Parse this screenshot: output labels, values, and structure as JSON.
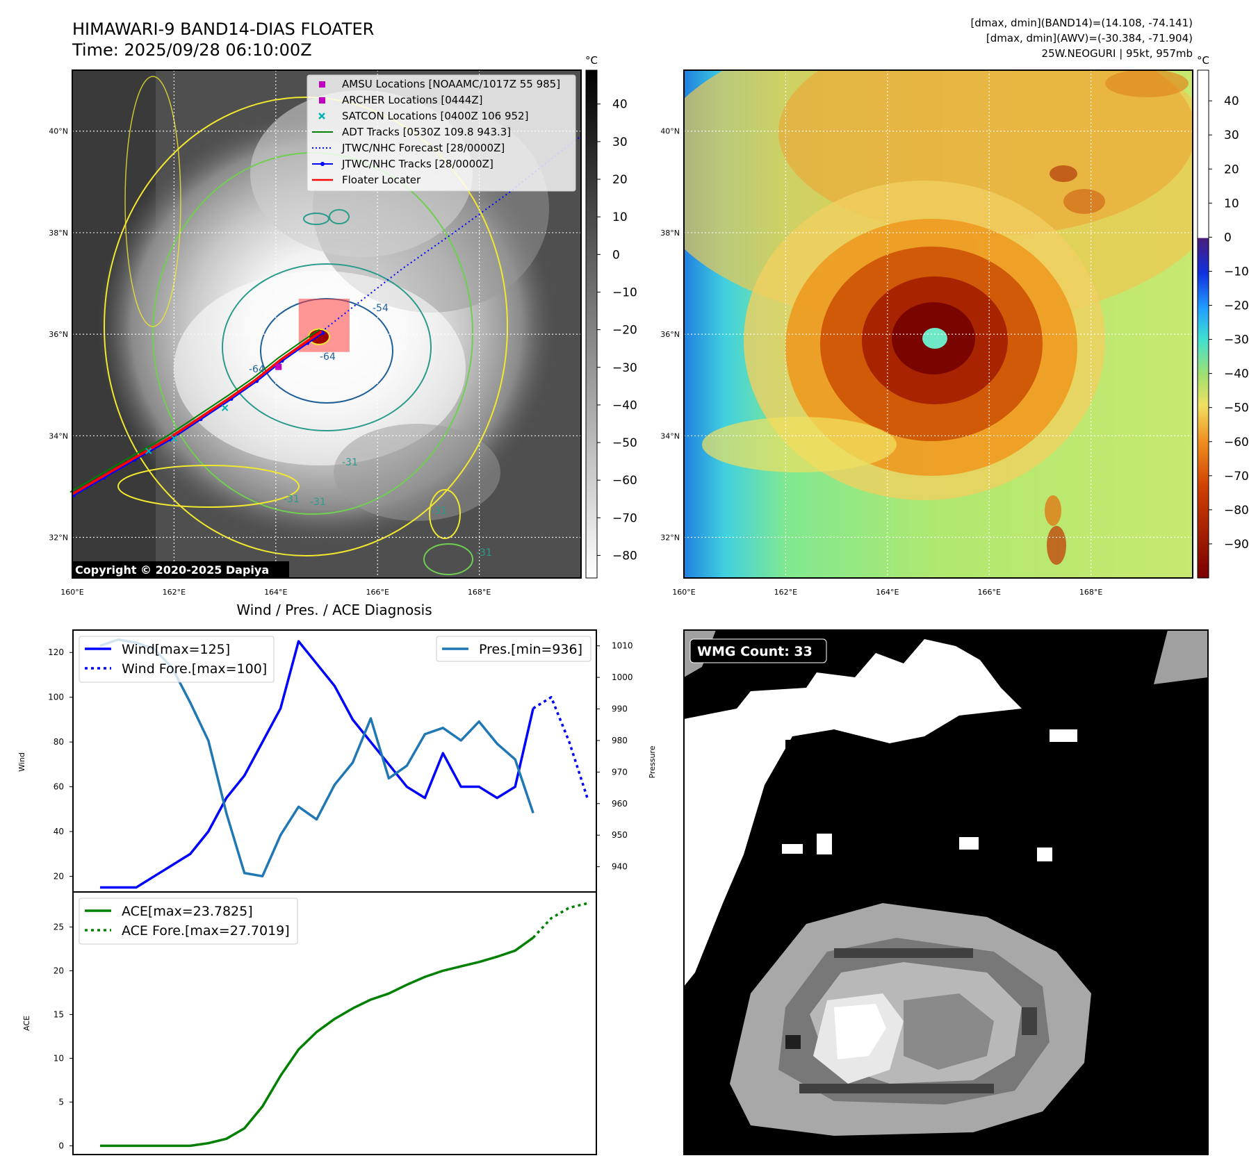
{
  "header": {
    "title_line1": "HIMAWARI-9 BAND14-DIAS FLOATER",
    "title_line2": "Time: 2025/09/28 06:10:00Z",
    "info_line1": "[dmax, dmin](BAND14)=(14.108, -74.141)",
    "info_line2": "[dmax, dmin](AWV)=(-30.384, -71.904)",
    "info_line3": "25W.NEOGURI | 95kt, 957mb"
  },
  "map": {
    "lat_labels": [
      "40°N",
      "38°N",
      "36°N",
      "34°N",
      "32°N"
    ],
    "lat_values": [
      40,
      38,
      36,
      34,
      32
    ],
    "lon_labels": [
      "160°E",
      "162°E",
      "164°E",
      "166°E",
      "168°E"
    ],
    "lon_values": [
      160,
      162,
      164,
      166,
      168
    ],
    "lon_range": [
      160,
      170
    ],
    "lat_range": [
      31.2,
      41.2
    ],
    "copyright": "Copyright © 2020-2025 Dapiya",
    "legend": [
      {
        "label": "AMSU Locations [NOAAMC/1017Z 55 985]",
        "marker": "square",
        "color": "#c000c0"
      },
      {
        "label": "ARCHER Locations [0444Z]",
        "marker": "square",
        "color": "#c000c0"
      },
      {
        "label": "SATCON Locations [0400Z 106 952]",
        "marker": "x",
        "color": "#00b4b4"
      },
      {
        "label": "ADT Tracks [0530Z 109.8 943.3]",
        "marker": "line",
        "color": "#007f00"
      },
      {
        "label": "JTWC/NHC Forecast [28/0000Z]",
        "marker": "dotted",
        "color": "#0000ff"
      },
      {
        "label": "JTWC/NHC Tracks [28/0000Z]",
        "marker": "dotline",
        "color": "#0000ff"
      },
      {
        "label": "Floater Locater",
        "marker": "line",
        "color": "#ff0000"
      }
    ],
    "contour_labels": [
      "-54",
      "-64",
      "-64",
      "-31",
      "-31",
      "-31",
      "-31",
      "-31"
    ],
    "track_lonlat": [
      [
        160.0,
        32.85
      ],
      [
        160.6,
        33.2
      ],
      [
        161.2,
        33.55
      ],
      [
        161.9,
        33.95
      ],
      [
        162.5,
        34.35
      ],
      [
        163.1,
        34.75
      ],
      [
        163.6,
        35.1
      ],
      [
        164.1,
        35.5
      ],
      [
        164.6,
        35.85
      ],
      [
        164.9,
        36.05
      ]
    ],
    "forecast_lonlat": [
      [
        164.9,
        36.05
      ],
      [
        165.6,
        36.6
      ],
      [
        166.5,
        37.3
      ],
      [
        167.5,
        38.0
      ],
      [
        168.6,
        38.8
      ],
      [
        169.6,
        39.6
      ],
      [
        170.0,
        39.9
      ]
    ],
    "floater_box": {
      "lon": [
        164.45,
        165.45
      ],
      "lat": [
        35.65,
        36.7
      ]
    },
    "center": {
      "lon": 164.85,
      "lat": 35.95
    }
  },
  "colorbar_left": {
    "unit": "°C",
    "ticks": [
      "40",
      "30",
      "20",
      "10",
      "0",
      "−10",
      "−20",
      "−30",
      "−40",
      "−50",
      "−60",
      "−70",
      "−80"
    ],
    "tick_values": [
      40,
      30,
      20,
      10,
      0,
      -10,
      -20,
      -30,
      -40,
      -50,
      -60,
      -70,
      -80
    ],
    "range": [
      49,
      -86
    ]
  },
  "colorbar_right": {
    "unit": "°C",
    "ticks": [
      "40",
      "30",
      "20",
      "10",
      "0",
      "−10",
      "−20",
      "−30",
      "−40",
      "−50",
      "−60",
      "−70",
      "−80",
      "−90"
    ],
    "tick_values": [
      40,
      30,
      20,
      10,
      0,
      -10,
      -20,
      -30,
      -40,
      -50,
      -60,
      -70,
      -80,
      -90
    ],
    "range": [
      49,
      -100
    ]
  },
  "chart_data": [
    {
      "type": "line",
      "title": "Wind / Pres. / ACE Diagnosis",
      "ylabel": "Wind",
      "ylabel_right": "Pressure",
      "ylim": [
        13,
        130
      ],
      "ylim_right": [
        932,
        1015
      ],
      "yticks": [
        20,
        40,
        60,
        80,
        100,
        120
      ],
      "yticks_right": [
        940,
        950,
        960,
        970,
        980,
        990,
        1000,
        1010
      ],
      "xlim": [
        -1.5,
        27.5
      ],
      "legend_left": [
        "Wind[max=125]",
        "Wind Fore.[max=100]"
      ],
      "legend_right": [
        "Pres.[min=936]"
      ],
      "series": [
        {
          "name": "Wind[max=125]",
          "axis": "left",
          "color": "#0000ff",
          "style": "solid",
          "x": [
            0,
            1,
            2,
            3,
            4,
            5,
            6,
            7,
            8,
            9,
            10,
            11,
            12,
            13,
            14,
            15,
            16,
            17,
            18,
            19,
            20,
            21,
            22,
            23,
            24
          ],
          "values": [
            15,
            15,
            15,
            20,
            25,
            30,
            40,
            55,
            65,
            80,
            95,
            125,
            115,
            105,
            90,
            80,
            70,
            60,
            55,
            75,
            60,
            60,
            55,
            60,
            95
          ]
        },
        {
          "name": "Wind Fore.[max=100]",
          "axis": "left",
          "color": "#0000ff",
          "style": "dotted",
          "x": [
            24,
            25,
            26,
            27
          ],
          "values": [
            95,
            100,
            80,
            55
          ]
        },
        {
          "name": "Pres.[min=936]",
          "axis": "right",
          "color": "#1f77b4",
          "style": "solid",
          "x": [
            0,
            1,
            2,
            3,
            4,
            5,
            6,
            7,
            8,
            9,
            10,
            11,
            12,
            13,
            14,
            15,
            16,
            17,
            18,
            19,
            20,
            21,
            22,
            23,
            24
          ],
          "values": [
            1010,
            1012,
            1011,
            1009,
            1003,
            992,
            980,
            957,
            938,
            937,
            950,
            959,
            955,
            966,
            973,
            987,
            968,
            972,
            982,
            984,
            980,
            986,
            979,
            974,
            957
          ]
        }
      ]
    },
    {
      "type": "line",
      "ylabel": "ACE",
      "ylim": [
        -1,
        29
      ],
      "yticks": [
        0,
        5,
        10,
        15,
        20,
        25
      ],
      "xlim": [
        -1.5,
        27.5
      ],
      "legend": [
        "ACE[max=23.7825]",
        "ACE Fore.[max=27.7019]"
      ],
      "series": [
        {
          "name": "ACE[max=23.7825]",
          "color": "#008000",
          "style": "solid",
          "x": [
            0,
            1,
            2,
            3,
            4,
            5,
            6,
            7,
            8,
            9,
            10,
            11,
            12,
            13,
            14,
            15,
            16,
            17,
            18,
            19,
            20,
            21,
            22,
            23,
            24
          ],
          "values": [
            0,
            0,
            0,
            0,
            0,
            0,
            0.3,
            0.8,
            2.0,
            4.5,
            8.0,
            11.0,
            13.0,
            14.5,
            15.7,
            16.7,
            17.4,
            18.4,
            19.3,
            20.0,
            20.5,
            21.0,
            21.6,
            22.3,
            23.78
          ]
        },
        {
          "name": "ACE Fore.[max=27.7019]",
          "color": "#008000",
          "style": "dotted",
          "x": [
            24,
            25,
            26,
            27
          ],
          "values": [
            23.78,
            26.0,
            27.2,
            27.7
          ]
        }
      ]
    }
  ],
  "wmg": {
    "label": "WMG Count: 33"
  }
}
